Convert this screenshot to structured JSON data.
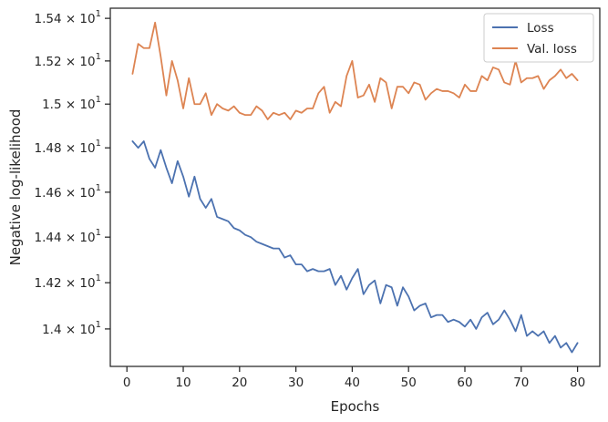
{
  "chart_data": {
    "type": "line",
    "xlabel": "Epochs",
    "ylabel": "Negative log-likelihood",
    "xlim": [
      -2.95,
      83.95
    ],
    "ylim": [
      13.84,
      15.448
    ],
    "yscale": "log",
    "x_ticks": [
      0,
      10,
      20,
      30,
      40,
      50,
      60,
      70,
      80
    ],
    "x_tick_labels": [
      "0",
      "10",
      "20",
      "30",
      "40",
      "50",
      "60",
      "70",
      "80"
    ],
    "y_ticks": [
      14.0,
      14.2,
      14.4,
      14.6,
      14.8,
      15.0,
      15.2,
      15.4
    ],
    "y_tick_labels": [
      {
        "mantissa": "1.4",
        "exponent": "1"
      },
      {
        "mantissa": "1.42",
        "exponent": "1"
      },
      {
        "mantissa": "1.44",
        "exponent": "1"
      },
      {
        "mantissa": "1.46",
        "exponent": "1"
      },
      {
        "mantissa": "1.48",
        "exponent": "1"
      },
      {
        "mantissa": "1.5",
        "exponent": "1"
      },
      {
        "mantissa": "1.52",
        "exponent": "1"
      },
      {
        "mantissa": "1.54",
        "exponent": "1"
      }
    ],
    "grid": false,
    "legend_position": "top-right",
    "x": [
      1,
      2,
      3,
      4,
      5,
      6,
      7,
      8,
      9,
      10,
      11,
      12,
      13,
      14,
      15,
      16,
      17,
      18,
      19,
      20,
      21,
      22,
      23,
      24,
      25,
      26,
      27,
      28,
      29,
      30,
      31,
      32,
      33,
      34,
      35,
      36,
      37,
      38,
      39,
      40,
      41,
      42,
      43,
      44,
      45,
      46,
      47,
      48,
      49,
      50,
      51,
      52,
      53,
      54,
      55,
      56,
      57,
      58,
      59,
      60,
      61,
      62,
      63,
      64,
      65,
      66,
      67,
      68,
      69,
      70,
      71,
      72,
      73,
      74,
      75,
      76,
      77,
      78,
      79,
      80
    ],
    "series": [
      {
        "name": "Loss",
        "color": "#4c72b0",
        "values": [
          14.83,
          14.8,
          14.83,
          14.75,
          14.71,
          14.79,
          14.71,
          14.64,
          14.74,
          14.67,
          14.58,
          14.67,
          14.57,
          14.53,
          14.57,
          14.49,
          14.48,
          14.47,
          14.44,
          14.43,
          14.41,
          14.4,
          14.38,
          14.37,
          14.36,
          14.35,
          14.35,
          14.31,
          14.32,
          14.28,
          14.28,
          14.25,
          14.26,
          14.25,
          14.25,
          14.26,
          14.19,
          14.23,
          14.17,
          14.22,
          14.26,
          14.15,
          14.19,
          14.21,
          14.11,
          14.19,
          14.18,
          14.1,
          14.18,
          14.14,
          14.08,
          14.1,
          14.11,
          14.05,
          14.06,
          14.06,
          14.03,
          14.04,
          14.03,
          14.01,
          14.04,
          14.0,
          14.05,
          14.07,
          14.02,
          14.04,
          14.08,
          14.04,
          13.99,
          14.06,
          13.97,
          13.99,
          13.97,
          13.99,
          13.94,
          13.97,
          13.92,
          13.94,
          13.9,
          13.94
        ]
      },
      {
        "name": "Val. loss",
        "color": "#dd8452",
        "values": [
          15.14,
          15.28,
          15.26,
          15.26,
          15.38,
          15.22,
          15.04,
          15.2,
          15.11,
          14.98,
          15.12,
          15.0,
          15.0,
          15.05,
          14.95,
          15.0,
          14.98,
          14.97,
          14.99,
          14.96,
          14.95,
          14.95,
          14.99,
          14.97,
          14.93,
          14.96,
          14.95,
          14.96,
          14.93,
          14.97,
          14.96,
          14.98,
          14.98,
          15.05,
          15.08,
          14.96,
          15.01,
          14.99,
          15.13,
          15.2,
          15.03,
          15.04,
          15.09,
          15.01,
          15.12,
          15.1,
          14.98,
          15.08,
          15.08,
          15.05,
          15.1,
          15.09,
          15.02,
          15.05,
          15.07,
          15.06,
          15.06,
          15.05,
          15.03,
          15.09,
          15.06,
          15.06,
          15.13,
          15.11,
          15.17,
          15.16,
          15.1,
          15.09,
          15.2,
          15.1,
          15.12,
          15.12,
          15.13,
          15.07,
          15.11,
          15.13,
          15.16,
          15.12,
          15.14,
          15.11
        ]
      }
    ]
  }
}
